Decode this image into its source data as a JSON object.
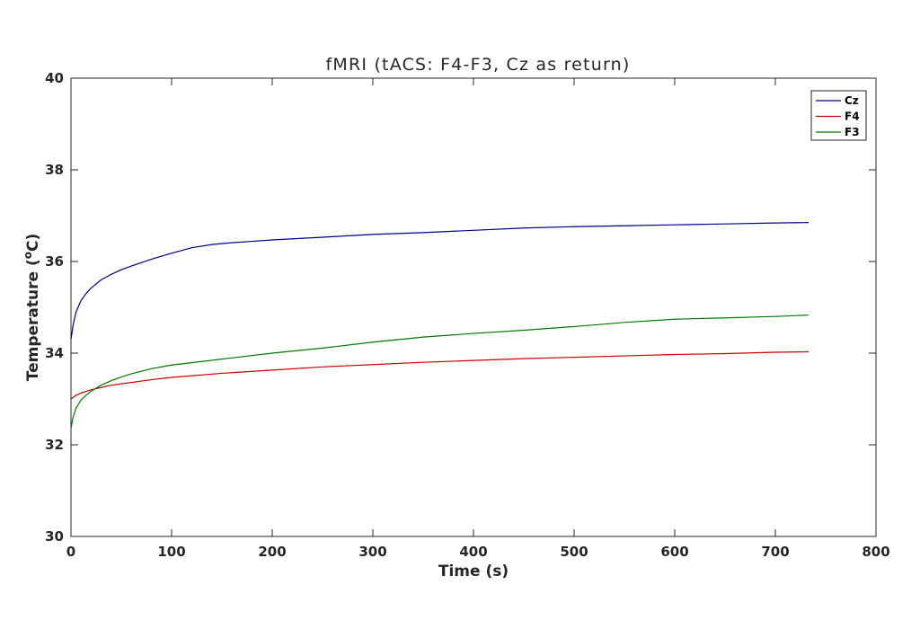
{
  "chart_data": {
    "type": "line",
    "title": "fMRI (tACS: F4-F3, Cz as return)",
    "xlabel": "Time (s)",
    "ylabel_main": "Temperature (",
    "ylabel_sup": "o",
    "ylabel_end": "C)",
    "xlim": [
      0,
      800
    ],
    "ylim": [
      30,
      40
    ],
    "xticks": [
      0,
      100,
      200,
      300,
      400,
      500,
      600,
      700,
      800
    ],
    "yticks": [
      30,
      32,
      34,
      36,
      38,
      40
    ],
    "grid": false,
    "legend_position": "top-right",
    "series": [
      {
        "name": "Cz",
        "color": "#00008b",
        "x": [
          0,
          2,
          5,
          10,
          15,
          20,
          30,
          40,
          50,
          60,
          80,
          100,
          120,
          140,
          160,
          180,
          200,
          250,
          300,
          350,
          400,
          450,
          500,
          550,
          600,
          650,
          700,
          733
        ],
        "y": [
          34.3,
          34.6,
          34.9,
          35.15,
          35.3,
          35.42,
          35.6,
          35.72,
          35.82,
          35.9,
          36.05,
          36.18,
          36.3,
          36.37,
          36.41,
          36.44,
          36.47,
          36.53,
          36.59,
          36.63,
          36.68,
          36.73,
          36.76,
          36.78,
          36.8,
          36.82,
          36.84,
          36.85
        ]
      },
      {
        "name": "F4",
        "color": "#cc0000",
        "x": [
          0,
          5,
          10,
          20,
          30,
          40,
          60,
          80,
          100,
          150,
          200,
          250,
          300,
          350,
          400,
          450,
          500,
          550,
          600,
          650,
          700,
          733
        ],
        "y": [
          33.0,
          33.08,
          33.13,
          33.2,
          33.25,
          33.3,
          33.36,
          33.42,
          33.47,
          33.56,
          33.63,
          33.7,
          33.75,
          33.8,
          33.84,
          33.88,
          33.91,
          33.94,
          33.97,
          33.99,
          34.02,
          34.03
        ]
      },
      {
        "name": "F3",
        "color": "#007a00",
        "x": [
          0,
          2,
          5,
          10,
          15,
          20,
          30,
          40,
          50,
          60,
          80,
          100,
          150,
          200,
          250,
          300,
          350,
          400,
          450,
          500,
          550,
          600,
          650,
          700,
          733
        ],
        "y": [
          32.35,
          32.6,
          32.8,
          32.98,
          33.08,
          33.17,
          33.3,
          33.4,
          33.48,
          33.55,
          33.66,
          33.74,
          33.87,
          34.0,
          34.11,
          34.24,
          34.35,
          34.43,
          34.5,
          34.58,
          34.67,
          34.74,
          34.77,
          34.8,
          34.83
        ]
      }
    ]
  }
}
